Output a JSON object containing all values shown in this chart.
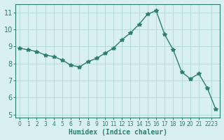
{
  "x": [
    0,
    1,
    2,
    3,
    4,
    5,
    6,
    7,
    8,
    9,
    10,
    11,
    12,
    13,
    14,
    15,
    16,
    17,
    18,
    19,
    20,
    21,
    22,
    23
  ],
  "y": [
    8.9,
    8.8,
    8.7,
    8.5,
    8.4,
    8.2,
    7.9,
    7.8,
    8.1,
    8.3,
    8.6,
    8.9,
    9.4,
    9.8,
    10.3,
    10.9,
    11.1,
    9.7,
    8.8,
    7.5,
    7.1,
    7.4,
    6.55,
    5.3
  ],
  "line_color": "#2e7d6e",
  "marker_size": 4,
  "bg_color": "#d9f0f0",
  "grid_color": "#b8dada",
  "xlabel": "Humidex (Indice chaleur)",
  "xtick_positions": [
    0,
    1,
    2,
    3,
    4,
    5,
    6,
    7,
    8,
    9,
    10,
    11,
    12,
    13,
    14,
    15,
    16,
    17,
    18,
    19,
    20,
    21,
    22.5
  ],
  "xtick_labels": [
    "0",
    "1",
    "2",
    "3",
    "4",
    "5",
    "6",
    "7",
    "8",
    "9",
    "10",
    "11",
    "12",
    "13",
    "14",
    "15",
    "16",
    "17",
    "18",
    "19",
    "20",
    "21",
    "2223"
  ],
  "ytick_values": [
    5,
    6,
    7,
    8,
    9,
    10,
    11
  ],
  "xlim": [
    -0.5,
    23.5
  ],
  "ylim": [
    4.8,
    11.5
  ],
  "tick_color": "#2e7d6e",
  "font_color": "#2e7d6e"
}
